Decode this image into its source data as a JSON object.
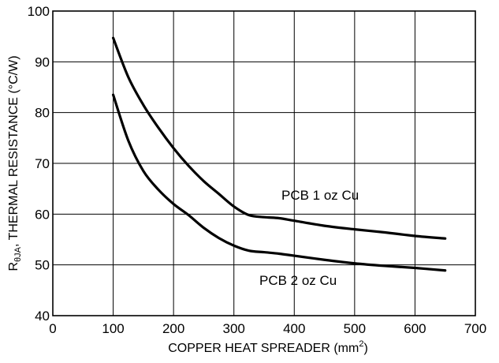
{
  "chart_data": {
    "type": "line",
    "xlabel": "COPPER HEAT SPREADER (mm",
    "xlabel_sup": "2",
    "xlabel_end": ")",
    "ylabel_main": "R",
    "ylabel_sub": "θJA",
    "ylabel_rest": ", THERMAL RESISTANCE (°C/W)",
    "xlim": [
      0,
      700
    ],
    "ylim": [
      40,
      100
    ],
    "xticks": [
      0,
      100,
      200,
      300,
      400,
      500,
      600,
      700
    ],
    "yticks": [
      40,
      50,
      60,
      70,
      80,
      90,
      100
    ],
    "grid": true,
    "series": [
      {
        "name": "PCB 1 oz Cu",
        "x": [
          100,
          125,
          150,
          175,
          200,
          225,
          250,
          275,
          300,
          325,
          350,
          375,
          400,
          450,
          500,
          550,
          600,
          650
        ],
        "y": [
          94.7,
          87.0,
          81.5,
          77.0,
          73.0,
          69.5,
          66.5,
          64.0,
          61.5,
          59.8,
          59.4,
          59.2,
          58.7,
          57.7,
          57.0,
          56.4,
          55.7,
          55.2
        ]
      },
      {
        "name": "PCB 2 oz Cu",
        "x": [
          100,
          125,
          150,
          175,
          200,
          225,
          250,
          275,
          300,
          325,
          350,
          375,
          400,
          450,
          500,
          550,
          600,
          650
        ],
        "y": [
          83.5,
          74.5,
          68.5,
          64.8,
          62.0,
          59.8,
          57.3,
          55.3,
          53.8,
          52.8,
          52.5,
          52.2,
          51.8,
          51.0,
          50.3,
          49.8,
          49.4,
          48.9
        ]
      }
    ]
  }
}
